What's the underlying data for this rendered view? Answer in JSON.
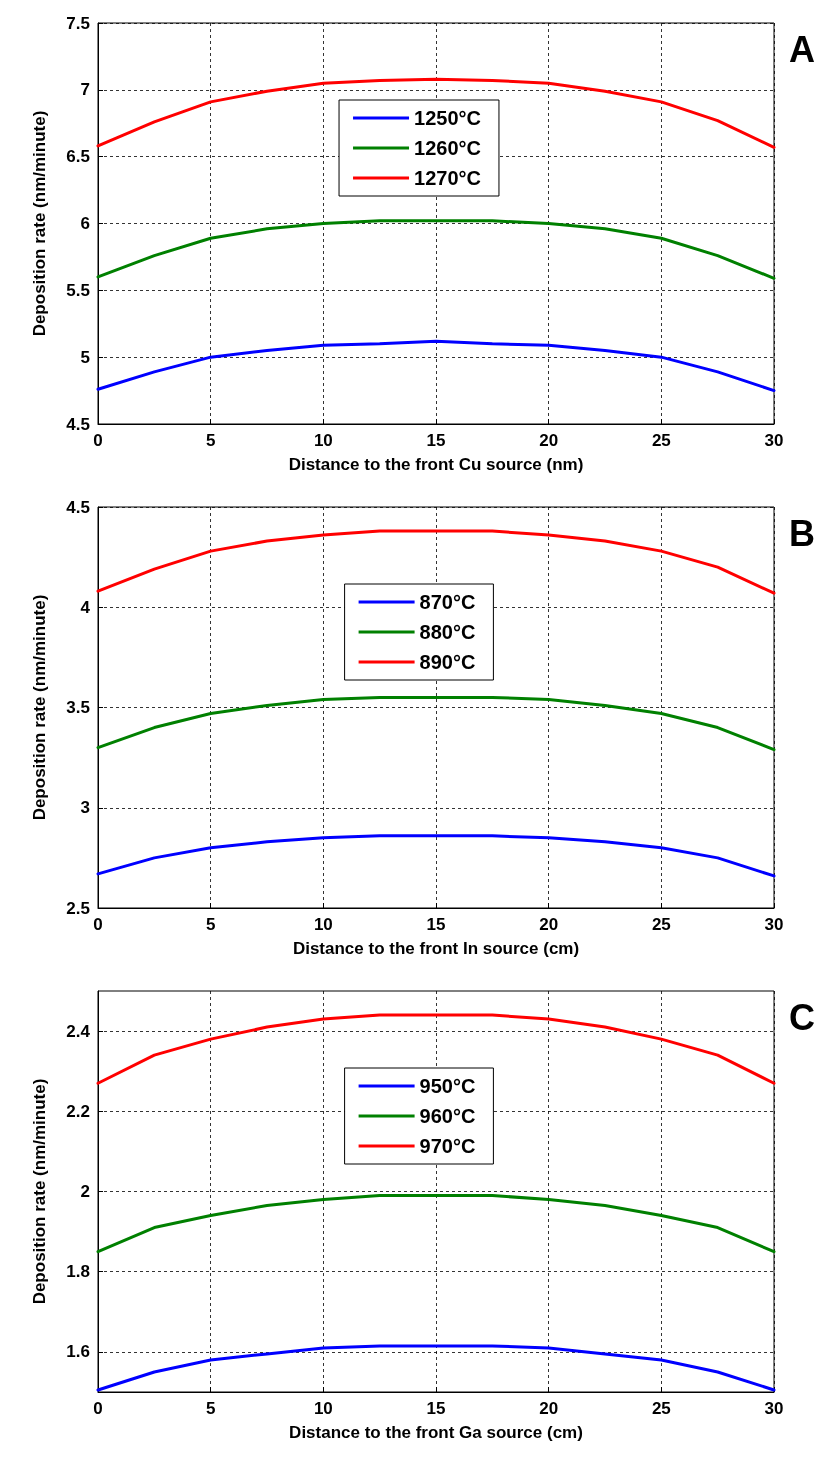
{
  "chart_data": [
    {
      "type": "line",
      "title": "A",
      "xlabel": "Distance to the front Cu source (nm)",
      "ylabel": "Deposition rate (nm/minute)",
      "x": [
        0,
        2.5,
        5,
        7.5,
        10,
        12.5,
        15,
        17.5,
        20,
        22.5,
        25,
        27.5,
        30
      ],
      "xlim": [
        0,
        30
      ],
      "xticks": [
        0,
        5,
        10,
        15,
        20,
        25,
        30
      ],
      "ylim": [
        4.5,
        7.5
      ],
      "yticks": [
        4.5,
        5,
        5.5,
        6,
        6.5,
        7,
        7.5
      ],
      "grid": true,
      "legend": "top",
      "marker": "none",
      "line_style": "solid",
      "series": [
        {
          "name": "1250°C",
          "color": "#0000ff",
          "values": [
            4.76,
            4.89,
            5.0,
            5.05,
            5.09,
            5.1,
            5.12,
            5.1,
            5.09,
            5.05,
            5.0,
            4.89,
            4.75
          ]
        },
        {
          "name": "1260°C",
          "color": "#008000",
          "values": [
            5.6,
            5.76,
            5.89,
            5.96,
            6.0,
            6.02,
            6.02,
            6.02,
            6.0,
            5.96,
            5.89,
            5.76,
            5.59
          ]
        },
        {
          "name": "1270°C",
          "color": "#ff0000",
          "values": [
            6.58,
            6.76,
            6.91,
            6.99,
            7.05,
            7.07,
            7.08,
            7.07,
            7.05,
            6.99,
            6.91,
            6.77,
            6.57
          ]
        }
      ]
    },
    {
      "type": "line",
      "title": "B",
      "xlabel": "Distance to the front In source (cm)",
      "ylabel": "Deposition rate (nm/minute)",
      "x": [
        0,
        2.5,
        5,
        7.5,
        10,
        12.5,
        15,
        17.5,
        20,
        22.5,
        25,
        27.5,
        30
      ],
      "xlim": [
        0,
        30
      ],
      "xticks": [
        0,
        5,
        10,
        15,
        20,
        25,
        30
      ],
      "ylim": [
        2.5,
        4.5
      ],
      "yticks": [
        2.5,
        3,
        3.5,
        4,
        4.5
      ],
      "grid": true,
      "legend": "top",
      "marker": "none",
      "line_style": "solid",
      "series": [
        {
          "name": "870°C",
          "color": "#0000ff",
          "values": [
            2.67,
            2.75,
            2.8,
            2.83,
            2.85,
            2.86,
            2.86,
            2.86,
            2.85,
            2.83,
            2.8,
            2.75,
            2.66
          ]
        },
        {
          "name": "880°C",
          "color": "#008000",
          "values": [
            3.3,
            3.4,
            3.47,
            3.51,
            3.54,
            3.55,
            3.55,
            3.55,
            3.54,
            3.51,
            3.47,
            3.4,
            3.29
          ]
        },
        {
          "name": "890°C",
          "color": "#ff0000",
          "values": [
            4.08,
            4.19,
            4.28,
            4.33,
            4.36,
            4.38,
            4.38,
            4.38,
            4.36,
            4.33,
            4.28,
            4.2,
            4.07
          ]
        }
      ]
    },
    {
      "type": "line",
      "title": "C",
      "xlabel": "Distance to the front Ga source (cm)",
      "ylabel": "Deposition rate (nm/minute)",
      "x": [
        0,
        2.5,
        5,
        7.5,
        10,
        12.5,
        15,
        17.5,
        20,
        22.5,
        25,
        27.5,
        30
      ],
      "xlim": [
        0,
        30
      ],
      "xticks": [
        0,
        5,
        10,
        15,
        20,
        25,
        30
      ],
      "ylim": [
        1.5,
        2.5
      ],
      "yticks": [
        1.6,
        1.8,
        2,
        2.2,
        2.4
      ],
      "grid": true,
      "legend": "top",
      "marker": "none",
      "line_style": "solid",
      "series": [
        {
          "name": "950°C",
          "color": "#0000ff",
          "values": [
            1.505,
            1.55,
            1.58,
            1.595,
            1.61,
            1.615,
            1.615,
            1.615,
            1.61,
            1.595,
            1.58,
            1.55,
            1.505
          ]
        },
        {
          "name": "960°C",
          "color": "#008000",
          "values": [
            1.85,
            1.91,
            1.94,
            1.965,
            1.98,
            1.99,
            1.99,
            1.99,
            1.98,
            1.965,
            1.94,
            1.91,
            1.85
          ]
        },
        {
          "name": "970°C",
          "color": "#ff0000",
          "values": [
            2.27,
            2.34,
            2.38,
            2.41,
            2.43,
            2.44,
            2.44,
            2.44,
            2.43,
            2.41,
            2.38,
            2.34,
            2.27
          ]
        }
      ]
    }
  ]
}
